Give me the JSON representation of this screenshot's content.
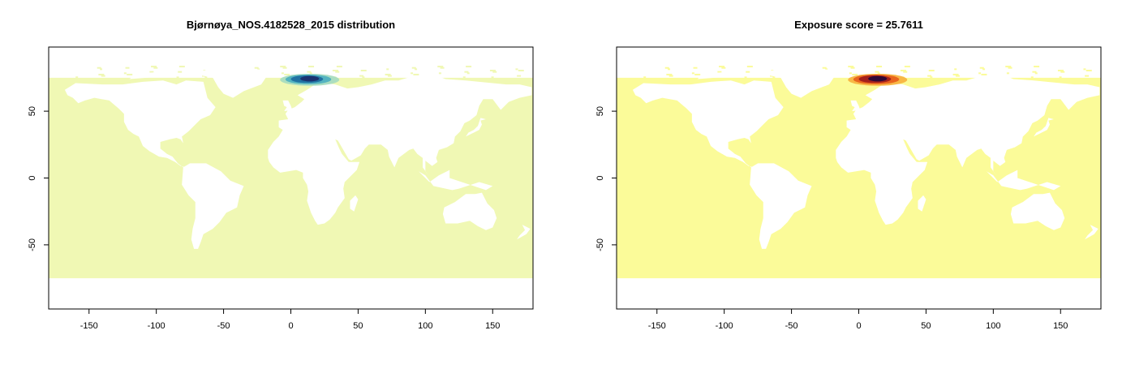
{
  "panels": [
    {
      "title": "Bjørnøya_NOS.4182528_2015 distribution",
      "ocean_color": "#f0f8b4",
      "hotspot_colors": [
        "#1b2f6e",
        "#1f6fa0",
        "#4fb0c0",
        "#a8dcc0"
      ]
    },
    {
      "title": "Exposure score = 25.7611",
      "ocean_color": "#fbfb99",
      "hotspot_colors": [
        "#2a0838",
        "#a01c1c",
        "#e8601c",
        "#f8b440"
      ]
    }
  ],
  "axes": {
    "xlim": [
      -180,
      180
    ],
    "ylim": [
      -98,
      98
    ],
    "x_ticks": [
      "-150",
      "-100",
      "-50",
      "0",
      "50",
      "100",
      "150"
    ],
    "y_ticks": [
      "-50",
      "0",
      "50"
    ],
    "ocean_lat_range": [
      -75,
      75
    ]
  }
}
